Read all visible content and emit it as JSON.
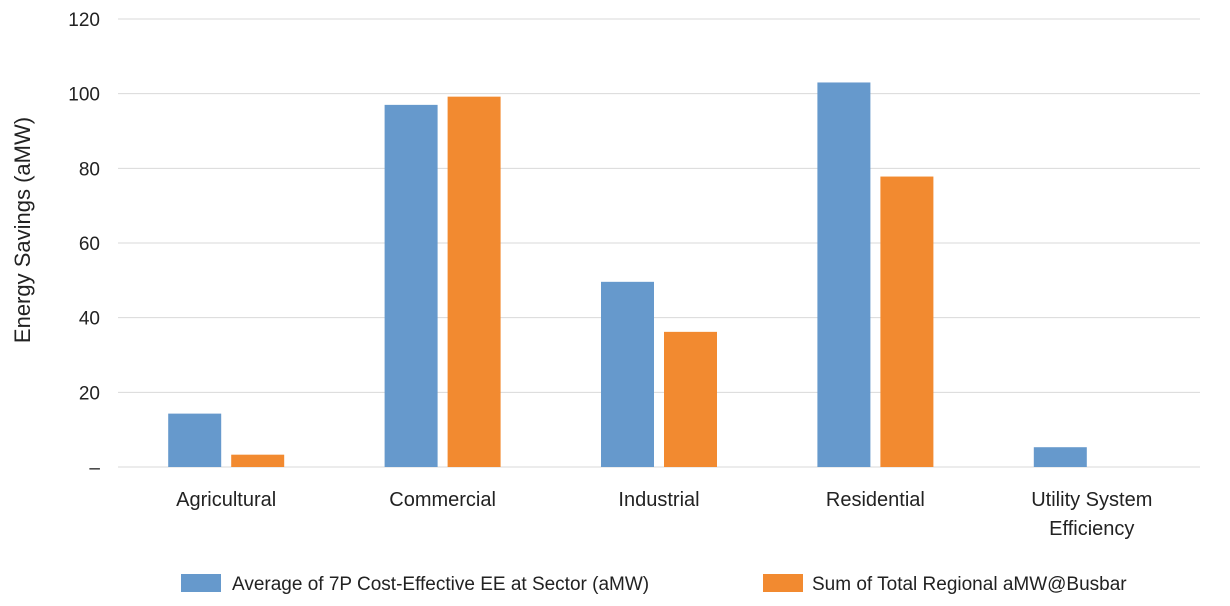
{
  "chart_data": {
    "type": "bar",
    "title": "",
    "xlabel": "",
    "ylabel": "Energy Savings (aMW)",
    "ylim": [
      0,
      120
    ],
    "yticks": [
      {
        "value": 0,
        "label": "–"
      },
      {
        "value": 20,
        "label": "20"
      },
      {
        "value": 40,
        "label": "40"
      },
      {
        "value": 60,
        "label": "60"
      },
      {
        "value": 80,
        "label": "80"
      },
      {
        "value": 100,
        "label": "100"
      },
      {
        "value": 120,
        "label": "120"
      }
    ],
    "categories": [
      [
        "Agricultural"
      ],
      [
        "Commercial"
      ],
      [
        "Industrial"
      ],
      [
        "Residential"
      ],
      [
        "Utility System",
        "Efficiency"
      ]
    ],
    "series": [
      {
        "name": "Average of 7P Cost-Effective EE at Sector (aMW)",
        "color": "#6699CC",
        "values": [
          14.3,
          97,
          49.6,
          103,
          5.3
        ]
      },
      {
        "name": "Sum of Total Regional aMW@Busbar",
        "color": "#F28A30",
        "values": [
          3.3,
          99.2,
          36.2,
          77.8,
          0
        ]
      }
    ],
    "grid": true,
    "gridline_color": "#d9d9d9",
    "legend_position": "bottom"
  }
}
